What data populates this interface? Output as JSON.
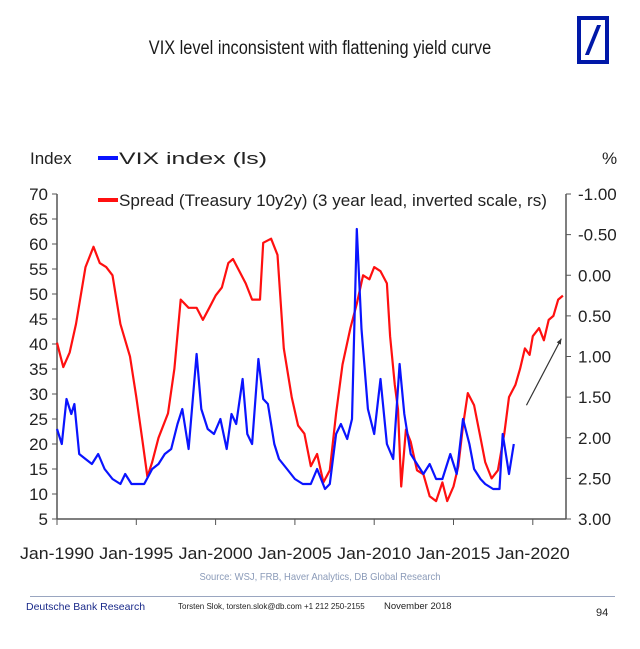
{
  "header": {
    "title": "VIX level inconsistent with flattening yield curve",
    "logo": "deutsche-bank-logo"
  },
  "chart_data": {
    "type": "line",
    "title": "VIX level inconsistent with flattening yield curve",
    "left_axis_label": "Index",
    "right_axis_label": "%",
    "left_ylim": [
      5,
      70
    ],
    "left_ticks": [
      "70",
      "65",
      "60",
      "55",
      "50",
      "45",
      "40",
      "35",
      "30",
      "25",
      "20",
      "15",
      "10",
      "5"
    ],
    "right_ylim": [
      -1.0,
      3.0
    ],
    "right_inverted": true,
    "right_ticks": [
      "-1.00",
      "-0.50",
      "0.00",
      "0.50",
      "1.00",
      "1.50",
      "2.00",
      "2.50",
      "3.00"
    ],
    "x_range": [
      1990,
      2022.1
    ],
    "x_ticks": [
      "Jan-1990",
      "Jan-1995",
      "Jan-2000",
      "Jan-2005",
      "Jan-2010",
      "Jan-2015",
      "Jan-2020"
    ],
    "grid": false,
    "legend_position": "top",
    "series": [
      {
        "name": "VIX index (ls)",
        "axis": "left",
        "color": "#0a14ff",
        "points": [
          [
            1990.0,
            23
          ],
          [
            1990.3,
            20
          ],
          [
            1990.6,
            29
          ],
          [
            1990.9,
            26
          ],
          [
            1991.1,
            28
          ],
          [
            1991.4,
            18
          ],
          [
            1991.8,
            17
          ],
          [
            1992.2,
            16
          ],
          [
            1992.6,
            18
          ],
          [
            1993.0,
            15
          ],
          [
            1993.5,
            13
          ],
          [
            1994.0,
            12
          ],
          [
            1994.3,
            14
          ],
          [
            1994.7,
            12
          ],
          [
            1995.0,
            12
          ],
          [
            1995.5,
            12
          ],
          [
            1996.0,
            15
          ],
          [
            1996.4,
            16
          ],
          [
            1996.8,
            18
          ],
          [
            1997.2,
            19
          ],
          [
            1997.6,
            24
          ],
          [
            1997.9,
            27
          ],
          [
            1998.3,
            19
          ],
          [
            1998.8,
            38
          ],
          [
            1999.1,
            27
          ],
          [
            1999.5,
            23
          ],
          [
            1999.9,
            22
          ],
          [
            2000.3,
            25
          ],
          [
            2000.7,
            19
          ],
          [
            2001.0,
            26
          ],
          [
            2001.3,
            24
          ],
          [
            2001.7,
            33
          ],
          [
            2002.0,
            22
          ],
          [
            2002.3,
            20
          ],
          [
            2002.7,
            37
          ],
          [
            2003.0,
            29
          ],
          [
            2003.3,
            28
          ],
          [
            2003.7,
            20
          ],
          [
            2004.0,
            17
          ],
          [
            2004.5,
            15
          ],
          [
            2005.0,
            13
          ],
          [
            2005.5,
            12
          ],
          [
            2006.0,
            12
          ],
          [
            2006.4,
            15
          ],
          [
            2006.9,
            11
          ],
          [
            2007.2,
            12
          ],
          [
            2007.6,
            22
          ],
          [
            2007.9,
            24
          ],
          [
            2008.3,
            21
          ],
          [
            2008.6,
            25
          ],
          [
            2008.9,
            63
          ],
          [
            2009.2,
            43
          ],
          [
            2009.6,
            27
          ],
          [
            2010.0,
            22
          ],
          [
            2010.4,
            33
          ],
          [
            2010.8,
            20
          ],
          [
            2011.2,
            17
          ],
          [
            2011.6,
            36
          ],
          [
            2011.9,
            26
          ],
          [
            2012.3,
            18
          ],
          [
            2012.7,
            16
          ],
          [
            2013.1,
            14
          ],
          [
            2013.5,
            16
          ],
          [
            2013.9,
            13
          ],
          [
            2014.3,
            13
          ],
          [
            2014.8,
            18
          ],
          [
            2015.2,
            14
          ],
          [
            2015.6,
            25
          ],
          [
            2016.0,
            20
          ],
          [
            2016.3,
            15
          ],
          [
            2016.7,
            13
          ],
          [
            2017.0,
            12
          ],
          [
            2017.5,
            11
          ],
          [
            2017.9,
            11
          ],
          [
            2018.1,
            22
          ],
          [
            2018.5,
            14
          ],
          [
            2018.8,
            20
          ]
        ]
      },
      {
        "name": "Spread (Treasury 10y2y) (3 year lead, inverted scale, rs)",
        "axis": "right",
        "color": "#ff1010",
        "points": [
          [
            1990.0,
            0.83
          ],
          [
            1990.4,
            1.13
          ],
          [
            1990.8,
            0.95
          ],
          [
            1991.2,
            0.6
          ],
          [
            1991.8,
            -0.1
          ],
          [
            1992.3,
            -0.35
          ],
          [
            1992.7,
            -0.15
          ],
          [
            1993.1,
            -0.1
          ],
          [
            1993.5,
            0.0
          ],
          [
            1994.0,
            0.6
          ],
          [
            1994.6,
            1.0
          ],
          [
            1995.0,
            1.5
          ],
          [
            1995.4,
            2.05
          ],
          [
            1995.7,
            2.48
          ],
          [
            1996.0,
            2.3
          ],
          [
            1996.4,
            2.0
          ],
          [
            1997.0,
            1.7
          ],
          [
            1997.4,
            1.15
          ],
          [
            1997.8,
            0.3
          ],
          [
            1998.3,
            0.4
          ],
          [
            1998.8,
            0.4
          ],
          [
            1999.2,
            0.55
          ],
          [
            1999.6,
            0.4
          ],
          [
            2000.0,
            0.25
          ],
          [
            2000.4,
            0.15
          ],
          [
            2000.8,
            -0.15
          ],
          [
            2001.1,
            -0.2
          ],
          [
            2001.5,
            -0.05
          ],
          [
            2001.9,
            0.1
          ],
          [
            2002.3,
            0.3
          ],
          [
            2002.8,
            0.3
          ],
          [
            2003.0,
            -0.4
          ],
          [
            2003.5,
            -0.45
          ],
          [
            2003.9,
            -0.25
          ],
          [
            2004.3,
            0.9
          ],
          [
            2004.8,
            1.5
          ],
          [
            2005.2,
            1.85
          ],
          [
            2005.6,
            1.95
          ],
          [
            2006.0,
            2.35
          ],
          [
            2006.4,
            2.2
          ],
          [
            2006.8,
            2.55
          ],
          [
            2007.2,
            2.4
          ],
          [
            2007.6,
            1.7
          ],
          [
            2008.0,
            1.1
          ],
          [
            2008.5,
            0.65
          ],
          [
            2008.9,
            0.35
          ],
          [
            2009.3,
            0.0
          ],
          [
            2009.7,
            0.05
          ],
          [
            2010.0,
            -0.1
          ],
          [
            2010.4,
            -0.05
          ],
          [
            2010.8,
            0.1
          ],
          [
            2011.0,
            0.75
          ],
          [
            2011.3,
            1.35
          ],
          [
            2011.5,
            1.65
          ],
          [
            2011.7,
            2.6
          ],
          [
            2012.0,
            1.9
          ],
          [
            2012.3,
            2.05
          ],
          [
            2012.7,
            2.4
          ],
          [
            2013.1,
            2.45
          ],
          [
            2013.5,
            2.72
          ],
          [
            2013.9,
            2.78
          ],
          [
            2014.3,
            2.55
          ],
          [
            2014.6,
            2.78
          ],
          [
            2015.0,
            2.6
          ],
          [
            2015.3,
            2.35
          ],
          [
            2015.6,
            1.85
          ],
          [
            2015.9,
            1.45
          ],
          [
            2016.3,
            1.6
          ],
          [
            2016.7,
            2.0
          ],
          [
            2017.0,
            2.3
          ],
          [
            2017.4,
            2.5
          ],
          [
            2017.8,
            2.4
          ],
          [
            2018.2,
            1.95
          ],
          [
            2018.5,
            1.5
          ],
          [
            2018.9,
            1.35
          ],
          [
            2019.2,
            1.15
          ],
          [
            2019.5,
            0.9
          ],
          [
            2019.8,
            0.98
          ],
          [
            2020.0,
            0.75
          ],
          [
            2020.4,
            0.65
          ],
          [
            2020.7,
            0.8
          ],
          [
            2021.0,
            0.55
          ],
          [
            2021.3,
            0.5
          ],
          [
            2021.6,
            0.3
          ],
          [
            2021.9,
            0.25
          ]
        ]
      }
    ],
    "annotations": [
      {
        "type": "arrow",
        "from": [
          2019.6,
          1.6
        ],
        "to": [
          2021.8,
          0.78
        ],
        "description": "upward trend arrow"
      }
    ]
  },
  "source": "Source: WSJ, FRB, Haver Analytics, DB Global Research",
  "footer": {
    "brand": "Deutsche Bank Research",
    "contact": "Torsten Slok, torsten.slok@db.com  +1 212 250-2155",
    "date": "November 2018",
    "page": "94"
  }
}
